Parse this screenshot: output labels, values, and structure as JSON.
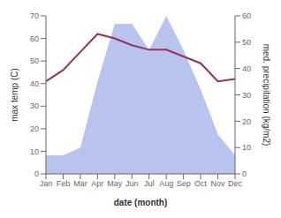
{
  "chart_data": {
    "type": "line",
    "xlabel": "date (month)",
    "ylabel": "max temp (C)",
    "y2label": "med. precipitation (kg/m2)",
    "categories": [
      "Jan",
      "Feb",
      "Mar",
      "Apr",
      "May",
      "Jun",
      "Jul",
      "Aug",
      "Sep",
      "Oct",
      "Nov",
      "Dec"
    ],
    "series": [
      {
        "type": "area",
        "axis": "y2",
        "color": "#b8c4ee",
        "values": [
          7,
          7,
          10,
          35,
          57,
          57,
          47,
          60,
          47,
          32,
          15,
          7
        ]
      },
      {
        "type": "line",
        "color": "#993355",
        "values": [
          41,
          46,
          54,
          62,
          60,
          57,
          55,
          55,
          52,
          49,
          41,
          42
        ]
      }
    ],
    "ylim": [
      0,
      70
    ],
    "yticks": [
      0,
      10,
      20,
      30,
      40,
      50,
      60,
      70
    ],
    "y2lim": [
      0,
      60
    ],
    "y2ticks": [
      0,
      10,
      20,
      30,
      40,
      50,
      60
    ],
    "grid": false
  }
}
